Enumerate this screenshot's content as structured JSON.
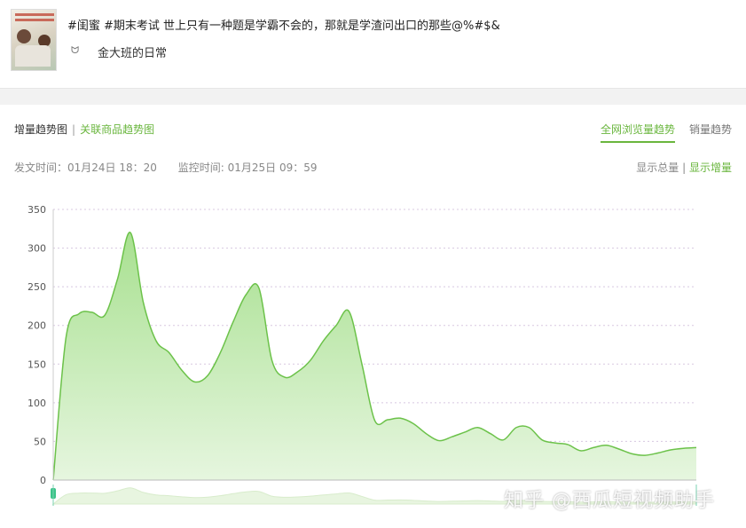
{
  "post": {
    "title": "#闺蜜 #期末考试 世上只有一种题是学霸不会的，那就是学渣问出口的那些@%#$&",
    "author": "金大班的日常",
    "author_icon": "bunny-icon"
  },
  "tabs_left": {
    "active": "增量趋势图",
    "separator": "|",
    "other": "关联商品趋势图"
  },
  "tabs_right": [
    {
      "label": "全网浏览量趋势",
      "active": true
    },
    {
      "label": "销量趋势",
      "active": false
    }
  ],
  "times": {
    "post_time": "发文时间：01月24日 18：20",
    "monitor_time": "监控时间: 01月25日 09：59"
  },
  "toggle": {
    "total": "显示总量",
    "separator": "|",
    "increment": "显示增量",
    "active": "increment"
  },
  "watermark": "知乎 @西瓜短视频助手",
  "colors": {
    "accent": "#6ab63e",
    "line": "#6cc24a",
    "fill_top": "#a8e090",
    "fill_bottom": "#e6f6df"
  },
  "chart_data": {
    "type": "area",
    "title": "",
    "xlabel": "",
    "ylabel": "",
    "ylim": [
      0,
      350
    ],
    "yticks": [
      "0",
      "50",
      "100",
      "150",
      "200",
      "250",
      "300",
      "350"
    ],
    "grid": true,
    "values": [
      0,
      185,
      215,
      217,
      213,
      260,
      320,
      230,
      180,
      165,
      142,
      127,
      135,
      165,
      205,
      240,
      248,
      155,
      133,
      140,
      155,
      180,
      200,
      218,
      150,
      77,
      78,
      80,
      73,
      60,
      51,
      56,
      62,
      68,
      60,
      52,
      68,
      68,
      52,
      48,
      46,
      38,
      42,
      45,
      40,
      34,
      32,
      35,
      39,
      41,
      42
    ],
    "has_range_slider": true
  }
}
